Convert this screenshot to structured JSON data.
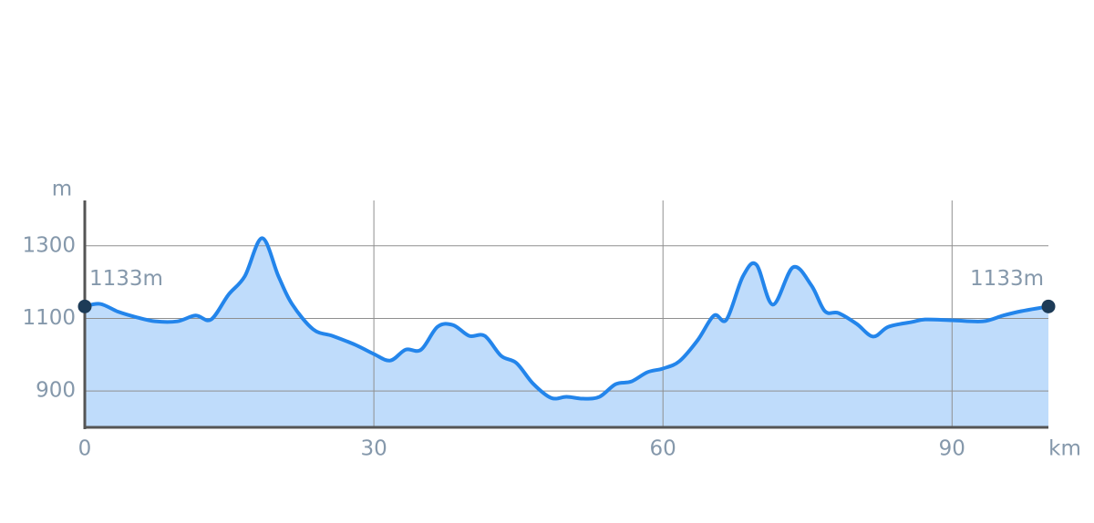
{
  "chart_data": {
    "type": "area",
    "x_label": "km",
    "y_label": "m",
    "x": [
      0,
      1.6,
      3.5,
      5.4,
      7.3,
      9.6,
      11.5,
      13.1,
      14.9,
      16.6,
      18.4,
      20.1,
      21.5,
      23.7,
      25.7,
      28.1,
      30,
      31.7,
      33.3,
      34.9,
      36.6,
      38.2,
      39.9,
      41.5,
      43.2,
      44.8,
      46.5,
      48.4,
      50,
      51.7,
      53.4,
      55.1,
      56.7,
      58.4,
      60,
      61.7,
      63.6,
      65.3,
      66.6,
      68.3,
      69.7,
      71.4,
      73.5,
      75.4,
      76.8,
      78.2,
      80.1,
      81.8,
      83.4,
      85.8,
      87.2,
      90,
      93.2,
      95.3,
      97.2,
      100
    ],
    "values": [
      1133,
      1140,
      1118,
      1103,
      1092,
      1092,
      1108,
      1097,
      1165,
      1216,
      1321,
      1216,
      1140,
      1070,
      1052,
      1027,
      1002,
      984,
      1014,
      1014,
      1077,
      1082,
      1052,
      1052,
      997,
      977,
      921,
      881,
      884,
      879,
      884,
      919,
      926,
      952,
      962,
      982,
      1040,
      1108,
      1097,
      1216,
      1248,
      1138,
      1241,
      1191,
      1120,
      1115,
      1085,
      1050,
      1077,
      1090,
      1097,
      1095,
      1092,
      1108,
      1120,
      1133
    ],
    "color": "#2385eb",
    "fill": "#bfdcfb",
    "xlim": [
      0,
      100
    ],
    "ylim": [
      800,
      1425
    ],
    "xticks": [
      0,
      30,
      60,
      90
    ],
    "yticks": [
      900,
      1100,
      1300
    ],
    "grid": true,
    "annotations": [
      {
        "x": 0,
        "y": 1133,
        "label": "1133m"
      },
      {
        "x": 100,
        "y": 1133,
        "label": "1133m"
      }
    ],
    "marker_color": "#1d3b57"
  }
}
